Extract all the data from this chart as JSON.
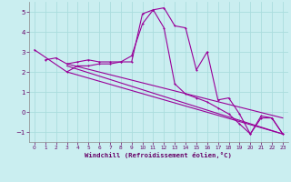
{
  "title": "",
  "xlabel": "Windchill (Refroidissement éolien,°C)",
  "bg_color": "#caeef0",
  "grid_color": "#aadddd",
  "line_color": "#990099",
  "xlim": [
    -0.5,
    23.5
  ],
  "ylim": [
    -1.5,
    5.5
  ],
  "yticks": [
    -1,
    0,
    1,
    2,
    3,
    4,
    5
  ],
  "xticks": [
    0,
    1,
    2,
    3,
    4,
    5,
    6,
    7,
    8,
    9,
    10,
    11,
    12,
    13,
    14,
    15,
    16,
    17,
    18,
    19,
    20,
    21,
    22,
    23
  ],
  "series1_x": [
    1,
    2,
    3,
    4,
    5,
    6,
    7,
    8,
    9,
    10,
    11,
    12,
    13,
    14,
    15,
    16,
    17,
    18,
    19,
    20,
    21,
    22,
    23
  ],
  "series1_y": [
    2.6,
    2.7,
    2.4,
    2.5,
    2.6,
    2.5,
    2.5,
    2.5,
    2.8,
    4.4,
    5.1,
    5.2,
    4.3,
    4.2,
    2.1,
    3.0,
    0.6,
    0.7,
    -0.1,
    -1.1,
    -0.2,
    -0.3,
    -1.1
  ],
  "series2_x": [
    0,
    3,
    4,
    5,
    6,
    7,
    8,
    9,
    10,
    11,
    12,
    13,
    14,
    15,
    16,
    17,
    18,
    19,
    20,
    21,
    22,
    23
  ],
  "series2_y": [
    3.1,
    2.0,
    2.3,
    2.3,
    2.4,
    2.4,
    2.5,
    2.5,
    4.9,
    5.1,
    4.2,
    1.4,
    0.9,
    0.7,
    0.5,
    0.2,
    -0.1,
    -0.6,
    -1.1,
    -0.3,
    -0.3,
    -1.1
  ],
  "line3_x": [
    3,
    23
  ],
  "line3_y": [
    2.0,
    -1.1
  ],
  "line4_x": [
    3,
    23
  ],
  "line4_y": [
    2.3,
    -1.1
  ],
  "line5_x": [
    3,
    23
  ],
  "line5_y": [
    2.4,
    -0.3
  ]
}
